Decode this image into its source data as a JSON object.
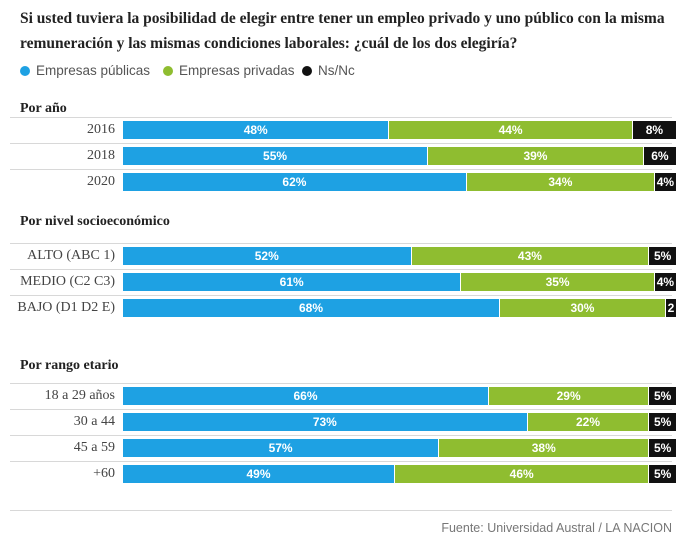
{
  "title": "Si usted tuviera la posibilidad de elegir entre tener un empleo privado y uno público con la misma remuneración y las mismas condiciones laborales: ¿cuál de los dos elegiría?",
  "legend": [
    {
      "label": "Empresas públicas",
      "color": "#1ea1e3"
    },
    {
      "label": "Empresas privadas",
      "color": "#8fbd30"
    },
    {
      "label": "Ns/Nc",
      "color": "#111111"
    }
  ],
  "source": "Fuente: Universidad Austral / LA NACION",
  "chart_data": {
    "type": "bar",
    "orientation": "horizontal",
    "stacked": true,
    "unit": "%",
    "series_names": [
      "Empresas públicas",
      "Empresas privadas",
      "Ns/Nc"
    ],
    "colors": [
      "#1ea1e3",
      "#8fbd30",
      "#111111"
    ],
    "groups": [
      {
        "title": "Por año",
        "rows": [
          {
            "label": "2016",
            "values": [
              48,
              44,
              8
            ],
            "labels": [
              "48%",
              "44%",
              "8%"
            ]
          },
          {
            "label": "2018",
            "values": [
              55,
              39,
              6
            ],
            "labels": [
              "55%",
              "39%",
              "6%"
            ]
          },
          {
            "label": "2020",
            "values": [
              62,
              34,
              4
            ],
            "labels": [
              "62%",
              "34%",
              "4%"
            ]
          }
        ]
      },
      {
        "title": "Por nivel socioeconómico",
        "rows": [
          {
            "label": "ALTO (ABC 1)",
            "values": [
              52,
              43,
              5
            ],
            "labels": [
              "52%",
              "43%",
              "5%"
            ]
          },
          {
            "label": "MEDIO (C2 C3)",
            "values": [
              61,
              35,
              4
            ],
            "labels": [
              "61%",
              "35%",
              "4%"
            ]
          },
          {
            "label": "BAJO (D1 D2 E)",
            "values": [
              68,
              30,
              2
            ],
            "labels": [
              "68%",
              "30%",
              "2"
            ]
          }
        ]
      },
      {
        "title": "Por rango etario",
        "rows": [
          {
            "label": "18 a 29 años",
            "values": [
              66,
              29,
              5
            ],
            "labels": [
              "66%",
              "29%",
              "5%"
            ]
          },
          {
            "label": "30 a 44",
            "values": [
              73,
              22,
              5
            ],
            "labels": [
              "73%",
              "22%",
              "5%"
            ]
          },
          {
            "label": "45 a 59",
            "values": [
              57,
              38,
              5
            ],
            "labels": [
              "57%",
              "38%",
              "5%"
            ]
          },
          {
            "label": "+60",
            "values": [
              49,
              46,
              5
            ],
            "labels": [
              "49%",
              "46%",
              "5%"
            ]
          }
        ]
      }
    ]
  }
}
